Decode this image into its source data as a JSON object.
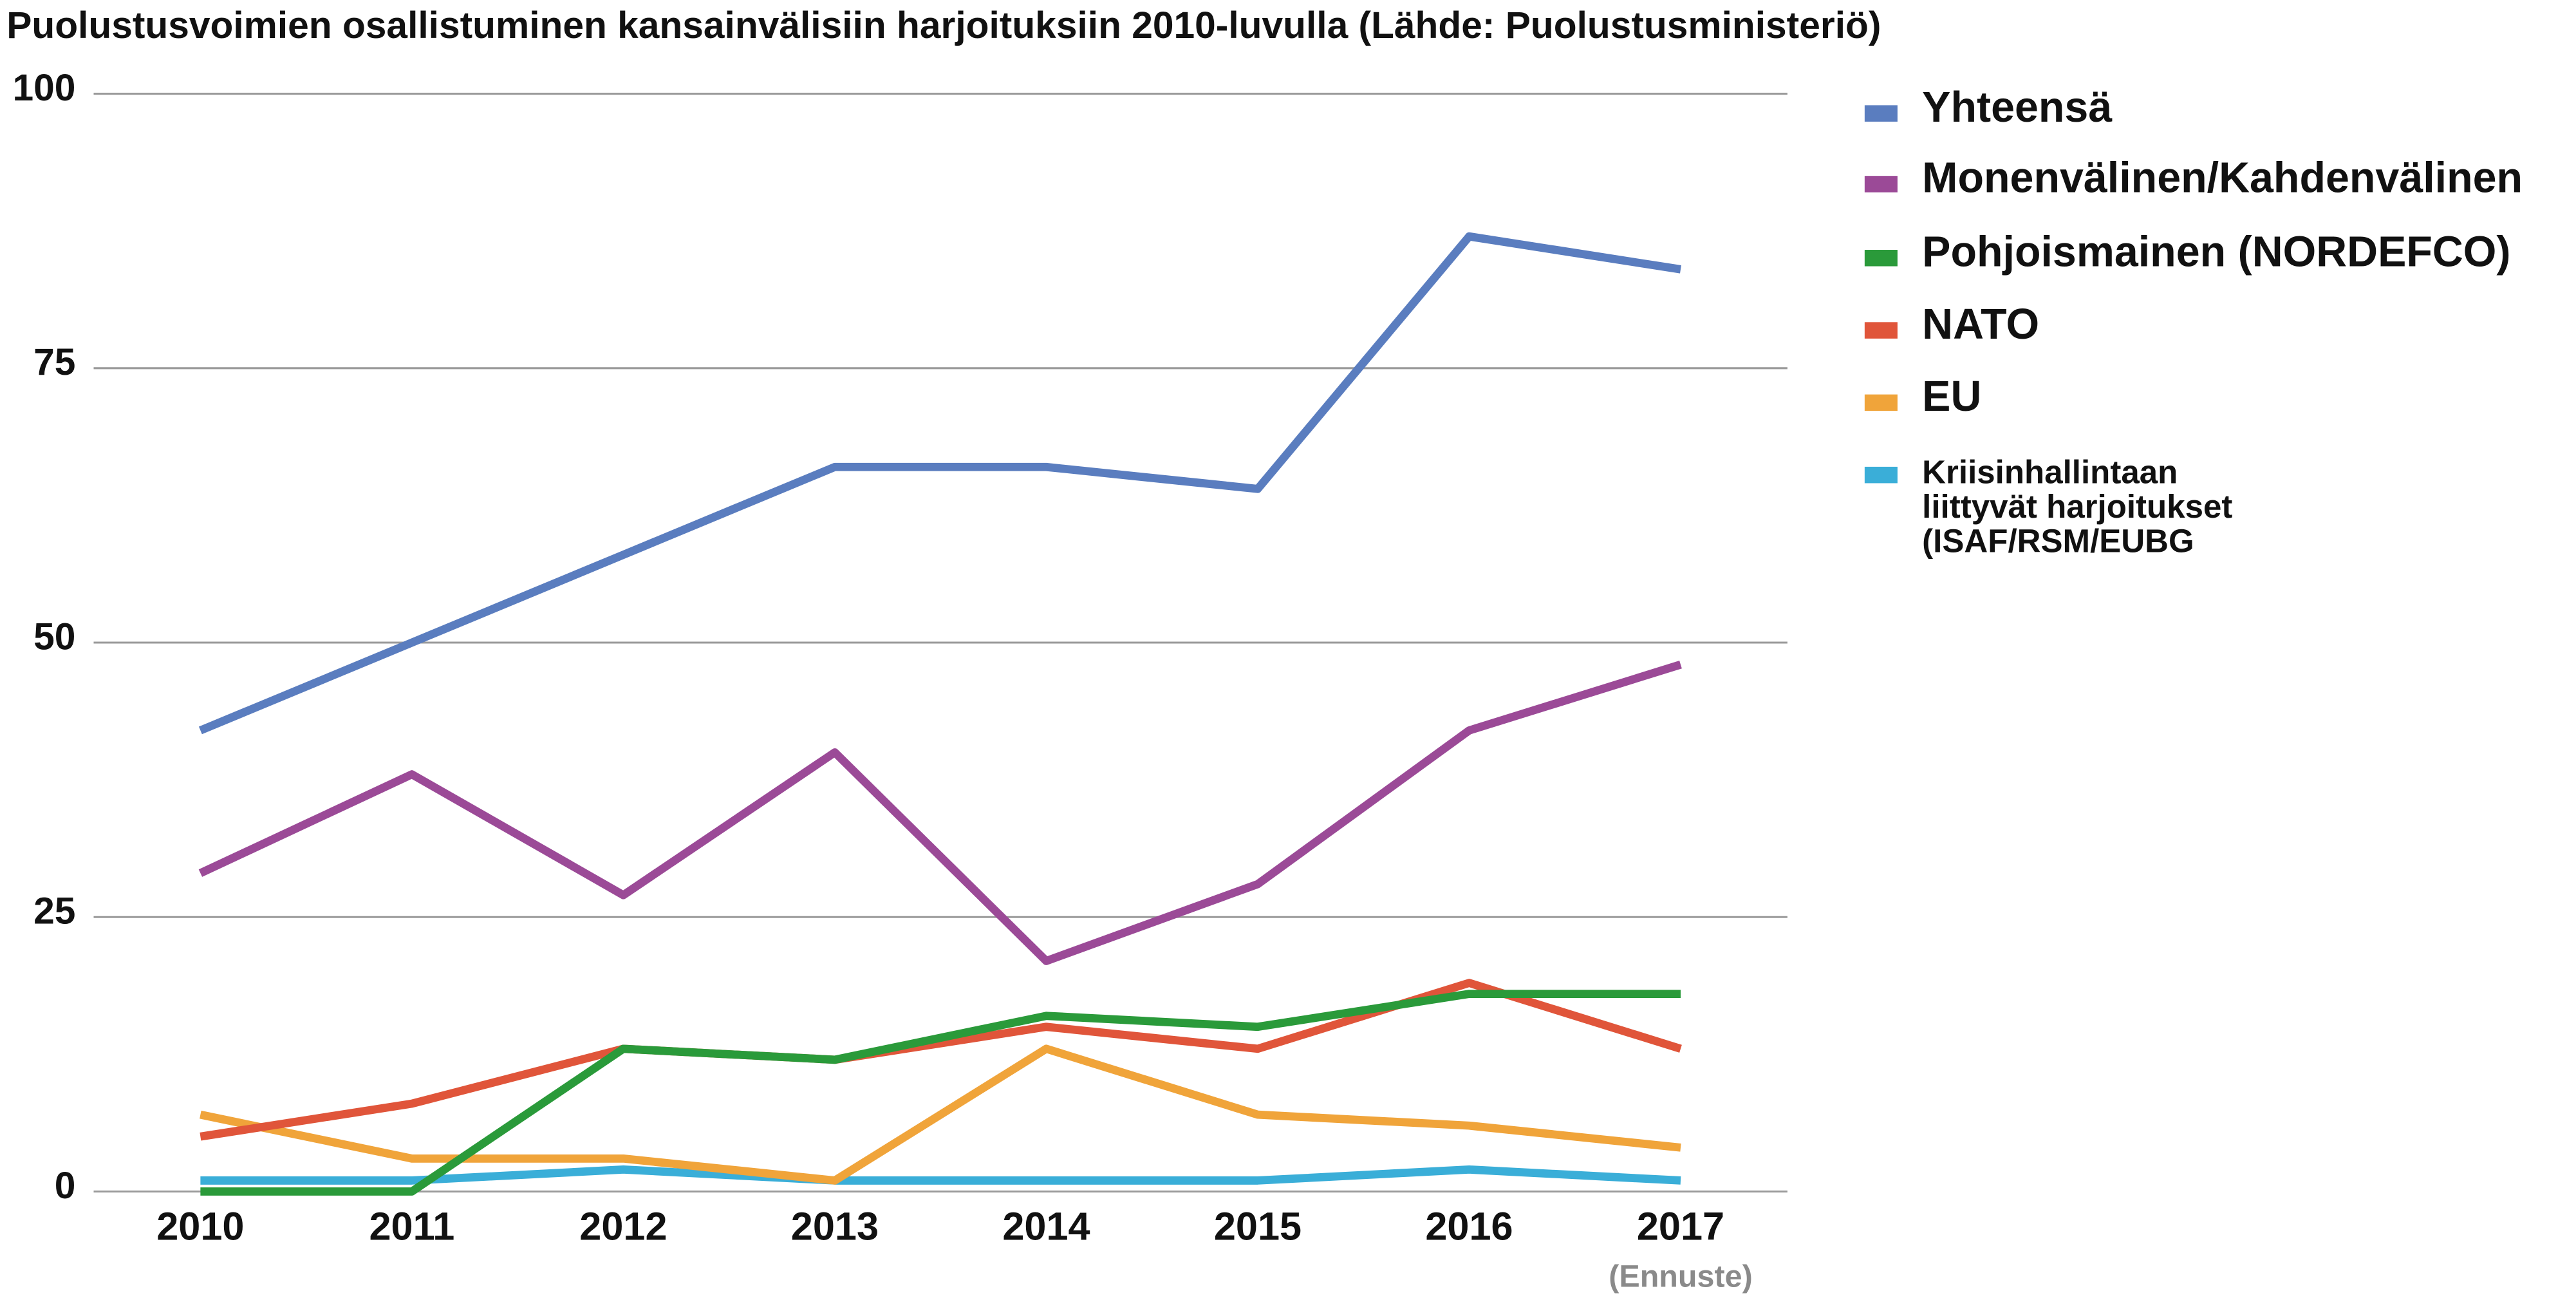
{
  "chart_data": {
    "type": "line",
    "title": "Puolustusvoimien osallistuminen kansainvälisiin harjoituksiin 2010-luvulla (Lähde: Puolustusministeriö)",
    "categories": [
      "2010",
      "2011",
      "2012",
      "2013",
      "2014",
      "2015",
      "2016",
      "2017"
    ],
    "annotation": "(Ennuste)",
    "ylim": [
      0,
      100
    ],
    "yticks": [
      0,
      25,
      50,
      75,
      100
    ],
    "grid": true,
    "legend": "right",
    "series": [
      {
        "name": "Yhteensä",
        "color": "#5a7dbf",
        "values": [
          42,
          50,
          58,
          66,
          66,
          64,
          87,
          84
        ]
      },
      {
        "name": "Monenvälinen/Kahdenvälinen",
        "color": "#9b4a97",
        "values": [
          29,
          38,
          27,
          40,
          21,
          28,
          42,
          48
        ]
      },
      {
        "name": "Pohjoismainen (NORDEFCO)",
        "color": "#2a9a3a",
        "values": [
          0,
          0,
          13,
          12,
          16,
          15,
          18,
          18
        ]
      },
      {
        "name": "NATO",
        "color": "#e0553a",
        "values": [
          5,
          8,
          13,
          12,
          15,
          13,
          19,
          13
        ]
      },
      {
        "name": "EU",
        "color": "#f0a43a",
        "values": [
          7,
          3,
          3,
          1,
          13,
          7,
          6,
          4
        ]
      },
      {
        "name": "Kriisinhallintaan liittyvät harjoitukset (ISAF/RSM/EUBG",
        "color": "#3aaed8",
        "values": [
          1,
          1,
          2,
          1,
          1,
          1,
          2,
          1
        ]
      }
    ]
  }
}
